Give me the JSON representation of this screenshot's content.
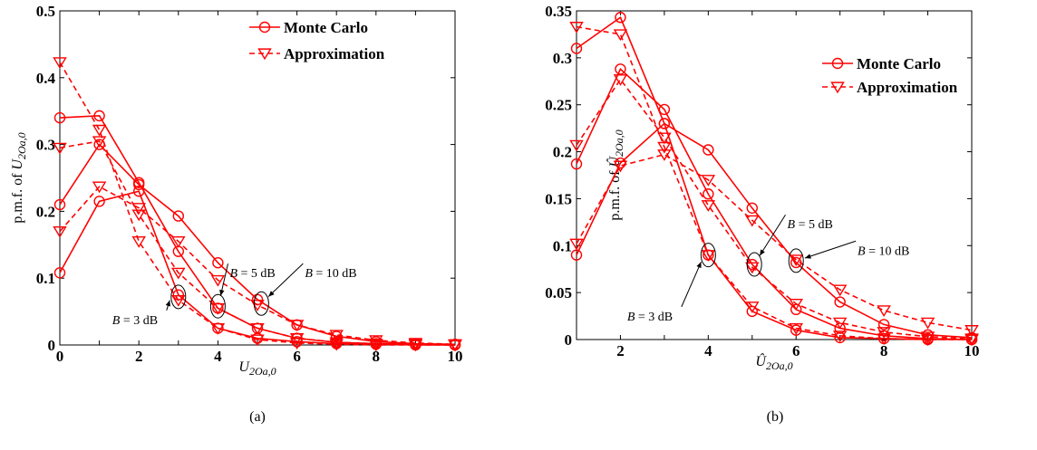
{
  "series_color": "#ff0000",
  "subtitles": [
    "(a)",
    "(b)"
  ],
  "chart_data": [
    {
      "type": "line",
      "xlabel": "U2Oa,0",
      "xlabel_main": "U",
      "xlabel_sub": "2Oa,0",
      "ylabel_prefix": "p.m.f. of ",
      "ylabel_main": "U",
      "ylabel_sub": "2Oa,0",
      "xlim": [
        0,
        10
      ],
      "ylim": [
        0,
        0.5
      ],
      "xticks": [
        0,
        2,
        4,
        6,
        8,
        10
      ],
      "yticks": [
        0,
        0.1,
        0.2,
        0.3,
        0.4,
        0.5
      ],
      "ytick_labels": [
        "0",
        "0.1",
        "0.2",
        "0.3",
        "0.4",
        "0.5"
      ],
      "legend": [
        "Monte Carlo",
        "Approximation"
      ],
      "legend_position": "top-right",
      "series": [
        {
          "legend": "Monte Carlo",
          "group": "B = 3 dB",
          "marker": "circle",
          "style": "solid",
          "x": [
            0,
            1,
            2,
            3,
            4,
            5,
            6,
            7,
            8,
            9,
            10
          ],
          "values": [
            0.34,
            0.343,
            0.243,
            0.14,
            0.055,
            0.025,
            0.01,
            0.004,
            0.002,
            0.001,
            0.0
          ]
        },
        {
          "legend": "Monte Carlo",
          "group": "B = 5 dB",
          "marker": "circle",
          "style": "solid",
          "x": [
            0,
            1,
            2,
            3,
            4,
            5,
            6,
            7,
            8,
            9,
            10
          ],
          "values": [
            0.21,
            0.3,
            0.24,
            0.193,
            0.123,
            0.068,
            0.03,
            0.013,
            0.005,
            0.002,
            0.001
          ]
        },
        {
          "legend": "Monte Carlo",
          "group": "B = 10 dB",
          "marker": "circle",
          "style": "solid",
          "x": [
            0,
            1,
            2,
            3,
            4,
            5,
            6,
            7,
            8,
            9,
            10
          ],
          "values": [
            0.108,
            0.215,
            0.23,
            0.075,
            0.025,
            0.01,
            0.005,
            0.002,
            0.001,
            0.0,
            0.0
          ]
        },
        {
          "legend": "Approximation",
          "group": "B = 3 dB",
          "marker": "triangle",
          "style": "dashed",
          "x": [
            0,
            1,
            2,
            3,
            4,
            5,
            6,
            7,
            8,
            9,
            10
          ],
          "values": [
            0.423,
            0.322,
            0.155,
            0.067,
            0.025,
            0.008,
            0.003,
            0.001,
            0.0,
            0.0,
            0.0
          ]
        },
        {
          "legend": "Approximation",
          "group": "B = 5 dB",
          "marker": "triangle",
          "style": "dashed",
          "x": [
            0,
            1,
            2,
            3,
            4,
            5,
            6,
            7,
            8,
            9,
            10
          ],
          "values": [
            0.295,
            0.305,
            0.195,
            0.108,
            0.055,
            0.025,
            0.01,
            0.004,
            0.002,
            0.001,
            0.0
          ]
        },
        {
          "legend": "Approximation",
          "group": "B = 10 dB",
          "marker": "triangle",
          "style": "dashed",
          "x": [
            0,
            1,
            2,
            3,
            4,
            5,
            6,
            7,
            8,
            9,
            10
          ],
          "values": [
            0.17,
            0.237,
            0.205,
            0.155,
            0.097,
            0.06,
            0.03,
            0.015,
            0.007,
            0.003,
            0.001
          ]
        }
      ],
      "annotations": [
        {
          "text_var": "B",
          "text_rest": " = 3 dB",
          "ellipse": [
            3,
            0.072
          ],
          "label_at": [
            1.6,
            0.045
          ]
        },
        {
          "text_var": "B",
          "text_rest": " = 5 dB",
          "ellipse": [
            4,
            0.058
          ],
          "label_at": [
            4.3,
            0.115
          ]
        },
        {
          "text_var": "B",
          "text_rest": " = 10 dB",
          "ellipse": [
            5.1,
            0.062
          ],
          "label_at": [
            6.2,
            0.115
          ]
        }
      ]
    },
    {
      "type": "line",
      "xlabel": "Û2Oa,0",
      "xlabel_main": "Û",
      "xlabel_sub": "2Oa,0",
      "ylabel_prefix": "p.m.f. of ",
      "ylabel_main": "Û",
      "ylabel_sub": "2Oa,0",
      "xlim": [
        1,
        10
      ],
      "ylim": [
        0,
        0.35
      ],
      "xticks": [
        2,
        4,
        6,
        8,
        10
      ],
      "yticks": [
        0,
        0.05,
        0.1,
        0.15,
        0.2,
        0.25,
        0.3,
        0.35
      ],
      "ytick_labels": [
        "0",
        "0.05",
        "0.1",
        "0.15",
        "0.2",
        "0.25",
        "0.3",
        "0.35"
      ],
      "legend": [
        "Monte Carlo",
        "Approximation"
      ],
      "legend_position": "top-right",
      "series": [
        {
          "legend": "Monte Carlo",
          "group": "B = 3 dB",
          "marker": "circle",
          "style": "solid",
          "x": [
            1,
            2,
            3,
            4,
            5,
            6,
            7,
            8,
            9,
            10
          ],
          "values": [
            0.31,
            0.343,
            0.23,
            0.09,
            0.03,
            0.01,
            0.002,
            0.001,
            0.0,
            0.0
          ]
        },
        {
          "legend": "Monte Carlo",
          "group": "B = 5 dB",
          "marker": "circle",
          "style": "solid",
          "x": [
            1,
            2,
            3,
            4,
            5,
            6,
            7,
            8,
            9,
            10
          ],
          "values": [
            0.187,
            0.288,
            0.245,
            0.155,
            0.08,
            0.032,
            0.012,
            0.004,
            0.001,
            0.0
          ]
        },
        {
          "legend": "Monte Carlo",
          "group": "B = 10 dB",
          "marker": "circle",
          "style": "solid",
          "x": [
            1,
            2,
            3,
            4,
            5,
            6,
            7,
            8,
            9,
            10
          ],
          "values": [
            0.09,
            0.188,
            0.23,
            0.202,
            0.14,
            0.082,
            0.04,
            0.016,
            0.005,
            0.002
          ]
        },
        {
          "legend": "Approximation",
          "group": "B = 3 dB",
          "marker": "triangle",
          "style": "dashed",
          "x": [
            1,
            2,
            3,
            4,
            5,
            6,
            7,
            8,
            9,
            10
          ],
          "values": [
            0.333,
            0.325,
            0.205,
            0.09,
            0.035,
            0.012,
            0.004,
            0.001,
            0.0,
            0.0
          ]
        },
        {
          "legend": "Approximation",
          "group": "B = 5 dB",
          "marker": "triangle",
          "style": "dashed",
          "x": [
            1,
            2,
            3,
            4,
            5,
            6,
            7,
            8,
            9,
            10
          ],
          "values": [
            0.207,
            0.277,
            0.215,
            0.143,
            0.077,
            0.038,
            0.018,
            0.008,
            0.003,
            0.001
          ]
        },
        {
          "legend": "Approximation",
          "group": "B = 10 dB",
          "marker": "triangle",
          "style": "dashed",
          "x": [
            1,
            2,
            3,
            4,
            5,
            6,
            7,
            8,
            9,
            10
          ],
          "values": [
            0.102,
            0.185,
            0.197,
            0.17,
            0.127,
            0.085,
            0.053,
            0.031,
            0.018,
            0.01
          ]
        }
      ],
      "annotations": [
        {
          "text_var": "B",
          "text_rest": " = 3 dB",
          "ellipse": [
            4,
            0.09
          ],
          "label_at": [
            2.4,
            0.03
          ]
        },
        {
          "text_var": "B",
          "text_rest": " = 5 dB",
          "ellipse": [
            5.05,
            0.08
          ],
          "label_at": [
            5.8,
            0.128
          ]
        },
        {
          "text_var": "B",
          "text_rest": " = 10 dB",
          "ellipse": [
            6,
            0.084
          ],
          "label_at": [
            7.4,
            0.1
          ]
        }
      ]
    }
  ]
}
